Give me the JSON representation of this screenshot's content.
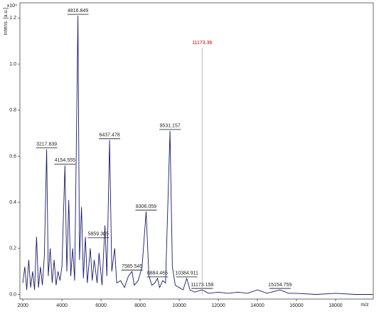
{
  "chart_data": {
    "type": "line",
    "y_label": "Intens. [a.u.]",
    "y_multiplier": "x10⁴",
    "x_label": "m/z",
    "color": "#1a1a6e",
    "xlim": [
      1850,
      19930
    ],
    "ylim": [
      -0.02,
      1.266
    ],
    "xticks": [
      2000,
      4000,
      6000,
      8000,
      10000,
      12000,
      14000,
      16000,
      18000
    ],
    "yticks": [
      {
        "value": 0,
        "label": "0.0"
      },
      {
        "value": 0.2,
        "label": "0.2"
      },
      {
        "value": 0.4,
        "label": "0.4"
      },
      {
        "value": 0.6,
        "label": "0.6"
      },
      {
        "value": 0.8,
        "label": "0.8"
      },
      {
        "value": 1.0,
        "label": "1.0"
      },
      {
        "value": 1.2,
        "label": "1.2"
      }
    ],
    "x": [
      2000,
      2100,
      2200,
      2300,
      2400,
      2500,
      2600,
      2700,
      2800,
      2900,
      3000,
      3100,
      3217.839,
      3300,
      3400,
      3500,
      3600,
      3700,
      3800,
      3900,
      4000,
      4154.555,
      4250,
      4350,
      4450,
      4550,
      4650,
      4816.849,
      4900,
      5000,
      5100,
      5200,
      5300,
      5450,
      5550,
      5650,
      5800,
      5900,
      6050,
      6200,
      6300,
      6437.478,
      6550,
      6700,
      6800,
      7000,
      7200,
      7400,
      7585.545,
      7700,
      7900,
      8100,
      8306.059,
      8450,
      8600,
      8750,
      8884.465,
      9000,
      9150,
      9300,
      9531.157,
      9650,
      9800,
      10000,
      10200,
      10384.911,
      10550,
      10800,
      11173.158,
      11500,
      12000,
      12500,
      13000,
      13500,
      14000,
      14500,
      15154.759,
      15600,
      16000,
      17000,
      18000,
      19000,
      19900
    ],
    "values": [
      0.05,
      0.12,
      0.02,
      0.15,
      0.03,
      0.1,
      0.02,
      0.25,
      0.03,
      0.12,
      0.04,
      0.17,
      0.63,
      0.08,
      0.2,
      0.05,
      0.15,
      0.04,
      0.1,
      0.06,
      0.12,
      0.56,
      0.1,
      0.41,
      0.08,
      0.2,
      0.06,
      1.21,
      0.15,
      0.38,
      0.07,
      0.25,
      0.05,
      0.2,
      0.06,
      0.15,
      0.05,
      0.18,
      0.04,
      0.3,
      0.08,
      0.67,
      0.1,
      0.2,
      0.05,
      0.06,
      0.03,
      0.08,
      0.1,
      0.04,
      0.06,
      0.12,
      0.36,
      0.08,
      0.04,
      0.05,
      0.07,
      0.03,
      0.06,
      0.05,
      0.71,
      0.12,
      0.04,
      0.03,
      0.02,
      0.07,
      0.02,
      0.01,
      0.02,
      0.005,
      0.01,
      0.005,
      0.01,
      0.005,
      0.02,
      0.005,
      0.02,
      0.005,
      0.005,
      0.0,
      0.005,
      0.0,
      0.0
    ],
    "annotations": [
      {
        "mz": 3217.839,
        "intensity": 0.63
      },
      {
        "mz": 4154.555,
        "intensity": 0.56
      },
      {
        "mz": 4816.849,
        "intensity": 1.21
      },
      {
        "mz": 5859.305,
        "intensity": 0.24
      },
      {
        "mz": 6437.478,
        "intensity": 0.67
      },
      {
        "mz": 7585.545,
        "intensity": 0.1
      },
      {
        "mz": 8306.059,
        "intensity": 0.36
      },
      {
        "mz": 8884.465,
        "intensity": 0.07
      },
      {
        "mz": 9531.157,
        "intensity": 0.71
      },
      {
        "mz": 10384.911,
        "intensity": 0.07
      },
      {
        "mz": 11173.158,
        "intensity": 0.02
      },
      {
        "mz": 15154.759,
        "intensity": 0.02
      },
      {
        "mz": 11173.36,
        "intensity": 1.07,
        "color": "#cc0000"
      }
    ]
  }
}
